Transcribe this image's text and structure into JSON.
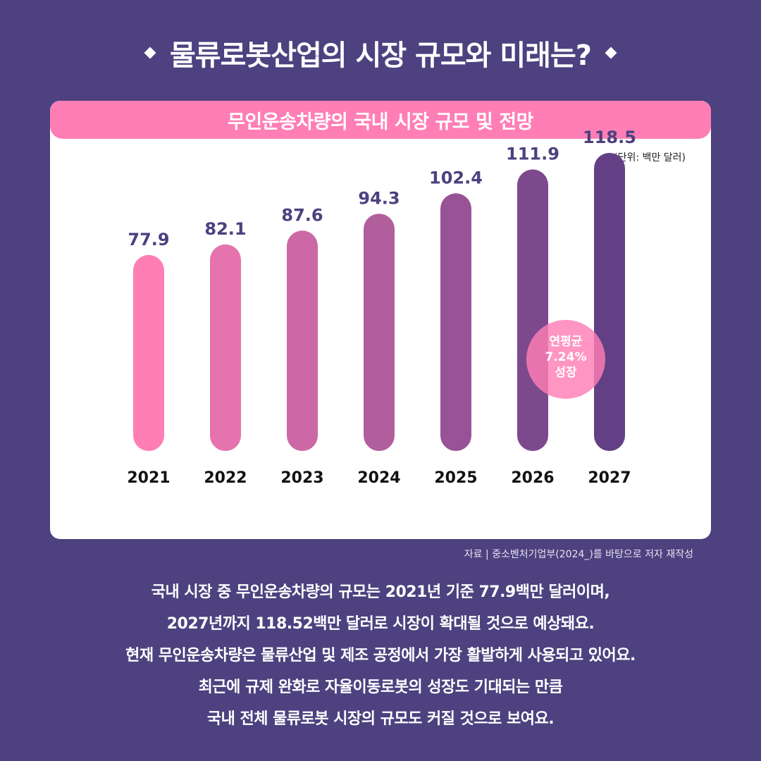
{
  "title": "물류로봇산업의 시장 규모와 미래는?",
  "card_title": "무인운송차량의 국내 시장 규모 및 전망",
  "unit_label": "(단위: 백만 달러)",
  "badge": [
    "연평균",
    "7.24%",
    "성장"
  ],
  "source": "자료 | 중소벤처기업부(2024_)를 바탕으로 저자 재작성",
  "description": [
    "국내 시장 중 무인운송차량의 규모는 2021년 기준 77.9백만 달러이며,",
    "2027년까지 118.52백만 달러로 시장이 확대될 것으로 예상돼요.",
    "현재 무인운송차량은 물류산업 및 제조 공정에서 가장 활발하게 사용되고 있어요.",
    "최근에 규제 완화로 자율이동로봇의 성장도 기대되는 만큼",
    "국내 전체 물류로봇 시장의 규모도 커질 것으로 보여요."
  ],
  "colors": {
    "background": "#4d417f",
    "header": "#ff7eb5",
    "label": "#4d417f",
    "badge": "#ff7eb5",
    "badge_text": "#ffffff",
    "bars": [
      "#ff7eb5",
      "#e573ad",
      "#cb68a5",
      "#b15e9d",
      "#975395",
      "#7d498d",
      "#634085"
    ]
  },
  "chart_data": {
    "type": "bar",
    "title": "무인운송차량의 국내 시장 규모 및 전망",
    "unit": "(단위: 백만 달러)",
    "categories": [
      "2021",
      "2022",
      "2023",
      "2024",
      "2025",
      "2026",
      "2027"
    ],
    "values": [
      77.9,
      82.1,
      87.6,
      94.3,
      102.4,
      111.9,
      118.5
    ],
    "value_labels": [
      "77.9",
      "82.1",
      "87.6",
      "94.3",
      "102.4",
      "111.9",
      "118.5"
    ],
    "grid": false,
    "legend": "none"
  }
}
